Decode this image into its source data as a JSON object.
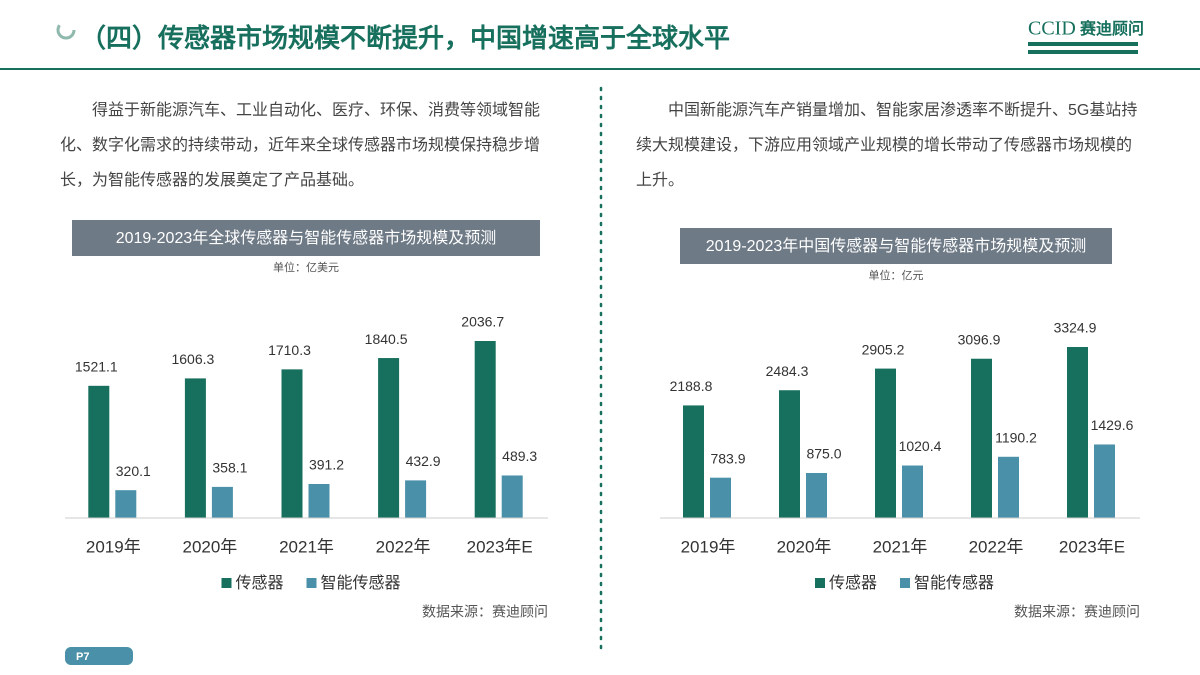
{
  "header": {
    "title": "（四）传感器市场规模不断提升，中国增速高于全球水平",
    "logo": "CCID",
    "logo_name": "赛迪顾问"
  },
  "page_number": "P7",
  "left_text": "得益于新能源汽车、工业自动化、医疗、环保、消费等领域智能化、数字化需求的持续带动，近年来全球传感器市场规模保持稳步增长，为智能传感器的发展奠定了产品基础。",
  "right_text": "中国新能源汽车产销量增加、智能家居渗透率不断提升、5G基站持续大规模建设，下游应用领域产业规模的增长带动了传感器市场规模的上升。",
  "chart_data": [
    {
      "type": "bar",
      "title": "2019-2023年全球传感器与智能传感器市场规模及预测",
      "unit": "单位：亿美元",
      "categories": [
        "2019年",
        "2020年",
        "2021年",
        "2022年",
        "2023年E"
      ],
      "series": [
        {
          "name": "传感器",
          "color": "#17705d",
          "values": [
            1521.1,
            1606.3,
            1710.3,
            1840.5,
            2036.7
          ]
        },
        {
          "name": "智能传感器",
          "color": "#4a90a8",
          "values": [
            320.1,
            358.1,
            391.2,
            432.9,
            489.3
          ]
        }
      ],
      "source": "数据来源：赛迪顾问"
    },
    {
      "type": "bar",
      "title": "2019-2023年中国传感器与智能传感器市场规模及预测",
      "unit": "单位：亿元",
      "categories": [
        "2019年",
        "2020年",
        "2021年",
        "2022年",
        "2023年E"
      ],
      "series": [
        {
          "name": "传感器",
          "color": "#17705d",
          "values": [
            2188.8,
            2484.3,
            2905.2,
            3096.9,
            3324.9
          ]
        },
        {
          "name": "智能传感器",
          "color": "#4a90a8",
          "values": [
            783.9,
            875.0,
            1020.4,
            1190.2,
            1429.6
          ],
          "value_labels": [
            "783.9",
            "875.0",
            "1020.4",
            "1190.2",
            "1429.6"
          ]
        }
      ],
      "source": "数据来源：赛迪顾问"
    }
  ]
}
